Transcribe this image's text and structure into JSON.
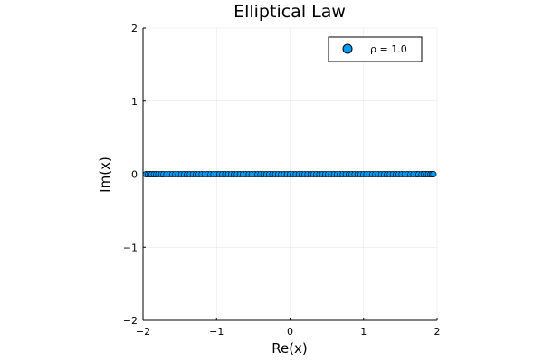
{
  "chart_data": {
    "type": "scatter",
    "title": "Elliptical Law",
    "xlabel": "Re(x)",
    "ylabel": "Im(x)",
    "xlim": [
      -2,
      2
    ],
    "ylim": [
      -2,
      2
    ],
    "xticks": [
      -2,
      -1,
      0,
      1,
      2
    ],
    "yticks": [
      -2,
      -1,
      0,
      1,
      2
    ],
    "xtick_labels": [
      "−2",
      "−1",
      "0",
      "1",
      "2"
    ],
    "ytick_labels": [
      "−2",
      "−1",
      "0",
      "1",
      "2"
    ],
    "grid": true,
    "legend_position": "top-right",
    "series": [
      {
        "name": "ρ = 1.0",
        "color": "#009AFA",
        "x": [
          -1.96,
          -1.93,
          -1.91,
          -1.88,
          -1.85,
          -1.82,
          -1.79,
          -1.75,
          -1.72,
          -1.68,
          -1.64,
          -1.6,
          -1.56,
          -1.52,
          -1.48,
          -1.44,
          -1.4,
          -1.36,
          -1.32,
          -1.28,
          -1.24,
          -1.2,
          -1.16,
          -1.12,
          -1.08,
          -1.04,
          -1.0,
          -0.96,
          -0.92,
          -0.88,
          -0.84,
          -0.8,
          -0.76,
          -0.72,
          -0.68,
          -0.64,
          -0.6,
          -0.56,
          -0.52,
          -0.48,
          -0.44,
          -0.4,
          -0.36,
          -0.32,
          -0.28,
          -0.24,
          -0.2,
          -0.16,
          -0.12,
          -0.08,
          -0.04,
          0.0,
          0.04,
          0.08,
          0.12,
          0.16,
          0.2,
          0.24,
          0.28,
          0.32,
          0.36,
          0.4,
          0.44,
          0.48,
          0.52,
          0.56,
          0.6,
          0.64,
          0.68,
          0.72,
          0.76,
          0.8,
          0.84,
          0.88,
          0.92,
          0.96,
          1.0,
          1.04,
          1.08,
          1.12,
          1.16,
          1.2,
          1.24,
          1.28,
          1.32,
          1.36,
          1.4,
          1.44,
          1.48,
          1.52,
          1.56,
          1.6,
          1.64,
          1.68,
          1.72,
          1.75,
          1.79,
          1.82,
          1.85,
          1.88,
          1.91,
          1.93,
          1.95
        ],
        "y": [
          0,
          0,
          0,
          0,
          0,
          0,
          0,
          0,
          0,
          0,
          0,
          0,
          0,
          0,
          0,
          0,
          0,
          0,
          0,
          0,
          0,
          0,
          0,
          0,
          0,
          0,
          0,
          0,
          0,
          0,
          0,
          0,
          0,
          0,
          0,
          0,
          0,
          0,
          0,
          0,
          0,
          0,
          0,
          0,
          0,
          0,
          0,
          0,
          0,
          0,
          0,
          0,
          0,
          0,
          0,
          0,
          0,
          0,
          0,
          0,
          0,
          0,
          0,
          0,
          0,
          0,
          0,
          0,
          0,
          0,
          0,
          0,
          0,
          0,
          0,
          0,
          0,
          0,
          0,
          0,
          0,
          0,
          0,
          0,
          0,
          0,
          0,
          0,
          0,
          0,
          0,
          0,
          0,
          0,
          0,
          0,
          0,
          0,
          0,
          0,
          0,
          0,
          0
        ]
      }
    ]
  }
}
